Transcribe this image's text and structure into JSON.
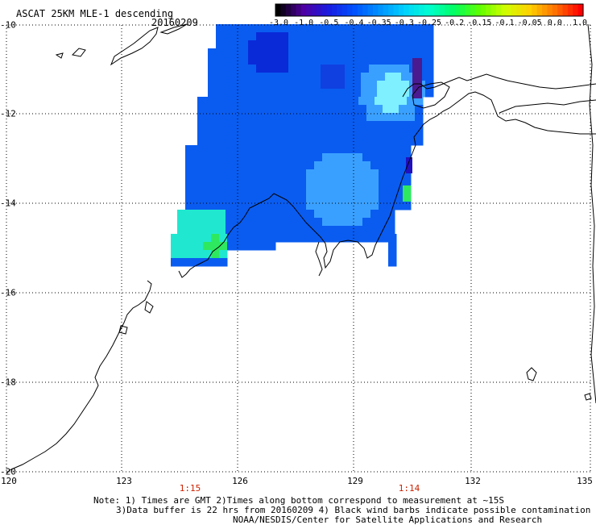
{
  "header": {
    "title": "ASCAT 25KM MLE-1 descending",
    "date": "20160209"
  },
  "colorbar": {
    "ticks": [
      "-3.0",
      "-1.0",
      "-0.5",
      "-0.4",
      "-0.35",
      "-0.3",
      "-0.25",
      "-0.2",
      "-0.15",
      "-0.1",
      "-0.05",
      "0.0",
      "1.0"
    ],
    "colors": [
      "#000000",
      "#5000a0",
      "#1a1ae0",
      "#0050ff",
      "#0090ff",
      "#00d0ff",
      "#00ffd0",
      "#00ff60",
      "#60ff00",
      "#d0ff00",
      "#ffd000",
      "#ff7000",
      "#ff0000"
    ]
  },
  "axes": {
    "latitudes": [
      "-10",
      "-12",
      "-14",
      "-16",
      "-18",
      "-20"
    ],
    "longitudes": [
      "120",
      "123",
      "126",
      "129",
      "132",
      "135"
    ]
  },
  "pass_times": [
    "1:15",
    "1:14"
  ],
  "notes": {
    "line1": "Note: 1) Times are GMT 2)Times along bottom correspond to measurement at ~15S",
    "line2": "3)Data buffer is 22 hrs from 20160209 4) Black wind barbs indicate possible contamination",
    "line3": "NOAA/NESDIS/Center for Satellite Applications and Research"
  },
  "colors": {
    "swath_base": "#0a5cf0",
    "swath_light": "#3aa0ff",
    "swath_dark": "#0a2ad8",
    "low_cyan": "#20e8d0",
    "green": "#2ee860",
    "coast": "#000000",
    "grid": "#000000",
    "time_red": "#cc2200"
  }
}
